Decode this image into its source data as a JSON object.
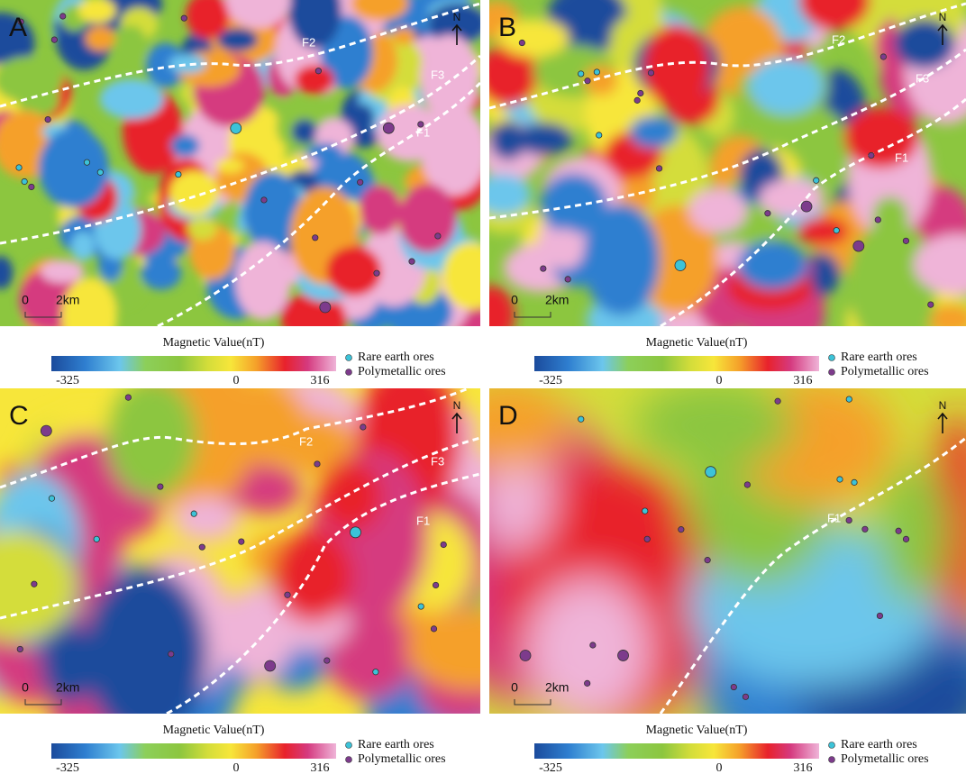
{
  "panels": [
    {
      "label": "A",
      "faults": [
        "F2",
        "F3",
        "F1"
      ],
      "scale": [
        "0",
        "2km"
      ],
      "north": "N"
    },
    {
      "label": "B",
      "faults": [
        "F2",
        "F3",
        "F1"
      ],
      "scale": [
        "0",
        "2km"
      ],
      "north": "N"
    },
    {
      "label": "C",
      "faults": [
        "F2",
        "F3",
        "F1"
      ],
      "scale": [
        "0",
        "2km"
      ],
      "north": "N"
    },
    {
      "label": "D",
      "faults": [
        "F1"
      ],
      "scale": [
        "0",
        "2km"
      ],
      "north": "N"
    }
  ],
  "legend": {
    "title": "Magnetic Value(nT)",
    "ticks": [
      -325,
      0,
      316
    ],
    "items": [
      "Rare earth ores",
      "Polymetallic ores"
    ]
  }
}
